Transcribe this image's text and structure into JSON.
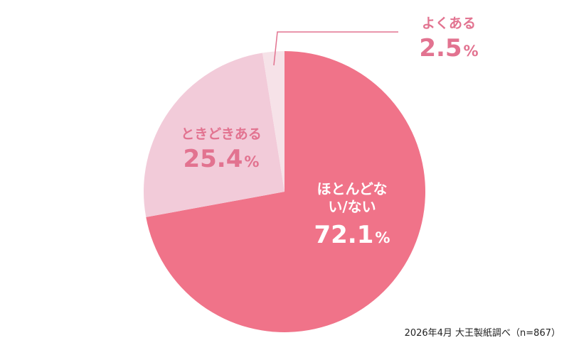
{
  "chart_data": {
    "type": "pie",
    "slices": [
      {
        "label": "ほとんどない/ない",
        "value": 72.1,
        "color": "#f07389"
      },
      {
        "label": "ときどきある",
        "value": 25.4,
        "color": "#f2cbd9"
      },
      {
        "label": "よくある",
        "value": 2.5,
        "color": "#f6e2e8"
      }
    ],
    "unit": "%",
    "legend": "none"
  },
  "footer": {
    "source": "2026年4月 大王製紙調べ（n=867）"
  }
}
